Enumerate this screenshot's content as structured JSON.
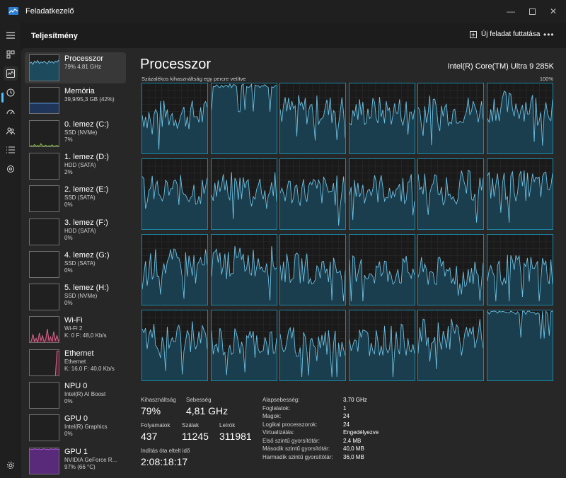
{
  "window": {
    "title": "Feladatkezelő"
  },
  "header": {
    "title": "Teljesítmény",
    "run_task_label": "Új feladat futtatása",
    "more_label": "•••"
  },
  "sidebar": [
    {
      "name": "Processzor",
      "sub": "79% 4,81 GHz",
      "sub2": "",
      "color": "#6fb8d6",
      "fill": "#1d4a5c",
      "active": true,
      "values": [
        0.7,
        0.74,
        0.66,
        0.78,
        0.72,
        0.8,
        0.69,
        0.75,
        0.71,
        0.77,
        0.73,
        0.68,
        0.79,
        0.72,
        0.76,
        0.7,
        0.78,
        0.74,
        0.81,
        0.73
      ]
    },
    {
      "name": "Memória",
      "sub": "39,9/95,3 GB (42%)",
      "sub2": "",
      "color": "#5a8fd6",
      "fill": "#1f3559",
      "active": false,
      "values": [
        0.42,
        0.42,
        0.42,
        0.42,
        0.42,
        0.42,
        0.42,
        0.42,
        0.42,
        0.42,
        0.42,
        0.42,
        0.42,
        0.42,
        0.42,
        0.42,
        0.42,
        0.42,
        0.42,
        0.42
      ]
    },
    {
      "name": "0. lemez (C:)",
      "sub": "SSD (NVMe)",
      "sub2": "7%",
      "color": "#8bc34a",
      "fill": "#2f4a1a",
      "active": false,
      "values": [
        0.04,
        0.08,
        0.05,
        0.12,
        0.06,
        0.09,
        0.05,
        0.15,
        0.07,
        0.06,
        0.1,
        0.05,
        0.08,
        0.06,
        0.11,
        0.05,
        0.07,
        0.09,
        0.06,
        0.08
      ]
    },
    {
      "name": "1. lemez (D:)",
      "sub": "HDD (SATA)",
      "sub2": "2%",
      "color": "#8bc34a",
      "fill": "#2f4a1a",
      "active": false,
      "values": [
        0,
        0,
        0,
        0,
        0,
        0,
        0,
        0,
        0,
        0,
        0,
        0,
        0,
        0,
        0,
        0,
        0,
        0,
        0,
        0
      ]
    },
    {
      "name": "2. lemez (E:)",
      "sub": "SSD (SATA)",
      "sub2": "0%",
      "color": "#8bc34a",
      "fill": "#2f4a1a",
      "active": false,
      "values": [
        0,
        0,
        0,
        0,
        0,
        0,
        0,
        0,
        0,
        0,
        0,
        0,
        0,
        0,
        0,
        0,
        0,
        0,
        0,
        0
      ]
    },
    {
      "name": "3. lemez (F:)",
      "sub": "HDD (SATA)",
      "sub2": "0%",
      "color": "#8bc34a",
      "fill": "#2f4a1a",
      "active": false,
      "values": [
        0,
        0,
        0,
        0,
        0,
        0,
        0,
        0,
        0,
        0,
        0,
        0,
        0,
        0,
        0,
        0,
        0,
        0,
        0,
        0
      ]
    },
    {
      "name": "4. lemez (G:)",
      "sub": "SSD (SATA)",
      "sub2": "0%",
      "color": "#8bc34a",
      "fill": "#2f4a1a",
      "active": false,
      "values": [
        0,
        0,
        0,
        0,
        0,
        0,
        0,
        0,
        0,
        0,
        0,
        0,
        0,
        0,
        0,
        0,
        0,
        0,
        0,
        0
      ]
    },
    {
      "name": "5. lemez (H:)",
      "sub": "SSD (NVMe)",
      "sub2": "0%",
      "color": "#8bc34a",
      "fill": "#2f4a1a",
      "active": false,
      "values": [
        0,
        0,
        0,
        0,
        0,
        0,
        0,
        0,
        0,
        0,
        0,
        0,
        0,
        0,
        0,
        0,
        0,
        0,
        0,
        0
      ]
    },
    {
      "name": "Wi-Fi",
      "sub": "Wi-Fi 2",
      "sub2": "K: 0 F: 48,0 Kb/s",
      "color": "#d46a8c",
      "fill": "#5a2236",
      "active": false,
      "values": [
        0.05,
        0.1,
        0.35,
        0.08,
        0.2,
        0.05,
        0.4,
        0.12,
        0.3,
        0.06,
        0.15,
        0.55,
        0.1,
        0.25,
        0.08,
        0.45,
        0.12,
        0.3,
        0.1,
        0.2
      ]
    },
    {
      "name": "Ethernet",
      "sub": "Ethernet",
      "sub2": "K: 16,0 F: 40,0 Kb/s",
      "color": "#d46a8c",
      "fill": "#5a2236",
      "active": false,
      "values": [
        0,
        0,
        0,
        0,
        0,
        0,
        0,
        0,
        0,
        0,
        0,
        0,
        0,
        0,
        0,
        0,
        0,
        0.95,
        0.95,
        0.95
      ]
    },
    {
      "name": "NPU 0",
      "sub": "Intel(R) AI Boost",
      "sub2": "0%",
      "color": "#b05ad6",
      "fill": "#3a1f4a",
      "active": false,
      "values": [
        0,
        0,
        0,
        0,
        0,
        0,
        0,
        0,
        0,
        0,
        0,
        0,
        0,
        0,
        0,
        0,
        0,
        0,
        0,
        0
      ]
    },
    {
      "name": "GPU 0",
      "sub": "Intel(R) Graphics",
      "sub2": "0%",
      "color": "#b05ad6",
      "fill": "#3a1f4a",
      "active": false,
      "values": [
        0,
        0,
        0,
        0,
        0,
        0,
        0,
        0,
        0,
        0,
        0,
        0,
        0,
        0,
        0,
        0,
        0,
        0,
        0,
        0
      ]
    },
    {
      "name": "GPU 1",
      "sub": "NVIDIA GeForce R...",
      "sub2": "97% (66 °C)",
      "color": "#b05ad6",
      "fill": "#5a2a7a",
      "active": false,
      "values": [
        0.95,
        0.97,
        0.96,
        0.98,
        0.97,
        0.96,
        0.98,
        0.95,
        0.97,
        0.98,
        0.96,
        0.97,
        0.95,
        0.98,
        0.97,
        0.96,
        0.98,
        0.97,
        0.96,
        0.97
      ]
    }
  ],
  "cpu": {
    "title": "Processzor",
    "model": "Intel(R) Core(TM) Ultra 9 285K",
    "graph_caption": "Százalékos kihasználtság egy percre vetítve",
    "graph_max": "100%",
    "stats": {
      "utilization_label": "Kihasználtság",
      "utilization": "79%",
      "speed_label": "Sebesség",
      "speed": "4,81 GHz",
      "processes_label": "Folyamatok",
      "processes": "437",
      "threads_label": "Szálak",
      "threads": "11245",
      "handles_label": "Leírók",
      "handles": "311981",
      "uptime_label": "Indítás óta eltelt idő",
      "uptime": "2:08:18:17"
    },
    "details": [
      {
        "key": "Alapsebesség:",
        "value": "3,70 GHz"
      },
      {
        "key": "Foglalatok:",
        "value": "1"
      },
      {
        "key": "Magok:",
        "value": "24"
      },
      {
        "key": "Logikai processzorok:",
        "value": "24"
      },
      {
        "key": "Virtualizálás:",
        "value": "Engedélyezve"
      },
      {
        "key": "Első szintű gyorsítótár:",
        "value": "2,4 MB"
      },
      {
        "key": "Második szintű gyorsítótár:",
        "value": "40,0 MB"
      },
      {
        "key": "Harmadik szintű gyorsítótár:",
        "value": "36,0 MB"
      }
    ],
    "core_base_levels": [
      0.55,
      0.97,
      0.62,
      0.6,
      0.62,
      0.68,
      0.55,
      0.6,
      0.55,
      0.58,
      0.62,
      0.62,
      0.58,
      0.62,
      0.52,
      0.48,
      0.46,
      0.5,
      0.62,
      0.55,
      0.55,
      0.58,
      0.66,
      0.97
    ],
    "accent": "#4cc2ff",
    "line_color": "#6ec3e6",
    "fill_color": "#1a3e4e",
    "grid_color": "#2c2c2c"
  }
}
